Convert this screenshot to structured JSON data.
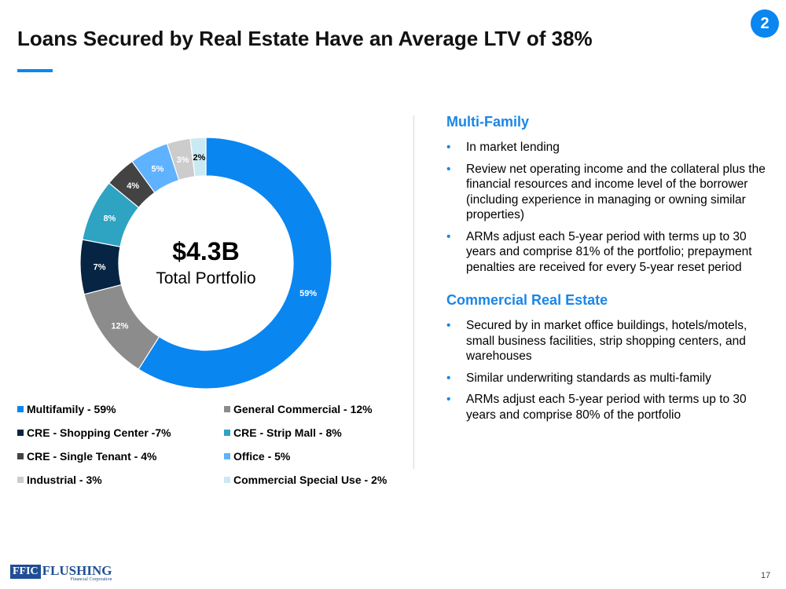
{
  "title": "Loans Secured by Real Estate Have an Average LTV of 38%",
  "badge": "2",
  "chart_data": {
    "type": "pie",
    "subtype": "donut",
    "center_value": "$4.3B",
    "center_label": "Total Portfolio",
    "categories": [
      "Multifamily",
      "General Commercial",
      "CRE - Shopping Center",
      "CRE - Strip Mall",
      "CRE - Single Tenant",
      "Office",
      "Industrial",
      "Commercial Special Use"
    ],
    "values": [
      59,
      12,
      7,
      8,
      4,
      5,
      3,
      2
    ],
    "labels": [
      "59%",
      "12%",
      "7%",
      "8%",
      "4%",
      "5%",
      "3%",
      "2%"
    ],
    "colors": [
      "#0a86f0",
      "#8c8c8c",
      "#062443",
      "#2ea3c2",
      "#434343",
      "#5fb2ff",
      "#cccccc",
      "#cbe9f2"
    ],
    "label_colors": [
      "#ffffff",
      "#ffffff",
      "#ffffff",
      "#ffffff",
      "#ffffff",
      "#ffffff",
      "#ffffff",
      "#000000"
    ],
    "legend": [
      "Multifamily - 59%",
      "General Commercial - 12%",
      "CRE - Shopping Center -7%",
      "CRE - Strip Mall - 8%",
      "CRE - Single Tenant - 4%",
      "Office - 5%",
      "Industrial - 3%",
      "Commercial Special Use - 2%"
    ],
    "legend_placement": "bottom"
  },
  "sections": [
    {
      "heading": "Multi-Family",
      "bullets": [
        "In market lending",
        "Review net operating income and the collateral plus the financial resources and income level of the borrower (including experience in managing or owning similar properties)",
        "ARMs adjust each 5-year period with terms up to 30 years and comprise 81% of the portfolio; prepayment penalties are received for every 5-year reset period"
      ]
    },
    {
      "heading": "Commercial Real Estate",
      "bullets": [
        "Secured by in market office buildings, hotels/motels, small business facilities, strip shopping centers, and warehouses",
        "Similar underwriting standards as multi-family",
        "ARMs adjust each 5-year period with terms up to 30 years and comprise 80% of the portfolio"
      ]
    }
  ],
  "bullet_char": "•",
  "logo": {
    "box": "FFIC",
    "word": "FLUSHING",
    "sub": "Financial Corporation"
  },
  "page_number": "17"
}
